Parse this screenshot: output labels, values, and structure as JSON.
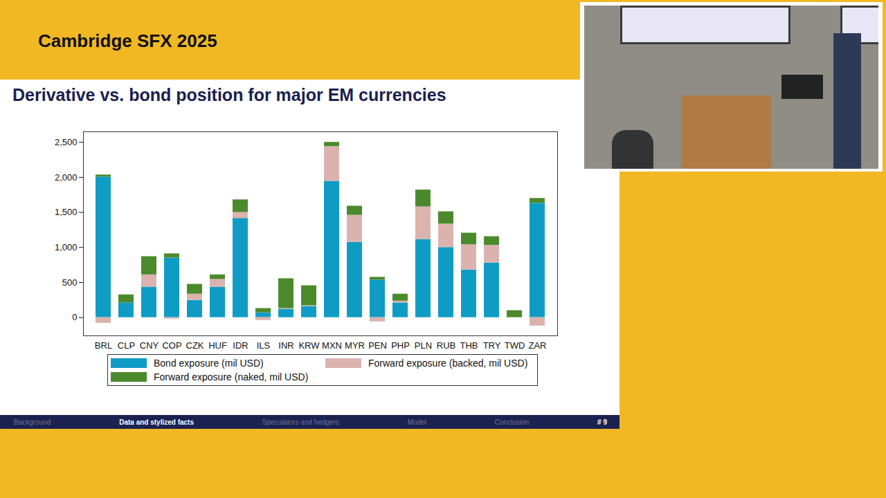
{
  "slide": {
    "header": "Cambridge SFX 2025",
    "footer": {
      "sections": [
        "Background",
        "Data and stylized facts",
        "Speculators and hedgers",
        "Model",
        "Conclusion"
      ],
      "active": "Data and stylized facts",
      "page": "# 9"
    }
  },
  "chart_data": {
    "type": "bar",
    "title": "Derivative vs. bond position for major EM currencies",
    "stacked": true,
    "grid": false,
    "legend": "bottom",
    "categories": [
      "BRL",
      "CLP",
      "CNY",
      "COP",
      "CZK",
      "HUF",
      "IDR",
      "ILS",
      "INR",
      "KRW",
      "MXN",
      "MYR",
      "PEN",
      "PHP",
      "PLN",
      "RUB",
      "THB",
      "TRY",
      "TWD",
      "ZAR"
    ],
    "series": [
      {
        "name": "Bond exposure (mil USD)",
        "color": "#0f9cc4",
        "values": [
          2005,
          210,
          435,
          850,
          245,
          435,
          1415,
          70,
          120,
          160,
          1945,
          1075,
          535,
          210,
          1115,
          1000,
          680,
          780,
          0,
          1630
        ]
      },
      {
        "name": "Forward exposure (backed, mil USD)",
        "color": "#dbb3ae",
        "values": [
          -80,
          0,
          175,
          -20,
          90,
          110,
          85,
          -40,
          10,
          10,
          495,
          385,
          -60,
          25,
          465,
          335,
          360,
          250,
          0,
          -120
        ]
      },
      {
        "name": "Forward exposure (naked, mil USD)",
        "color": "#4b8a2c",
        "values": [
          30,
          115,
          260,
          60,
          140,
          65,
          180,
          60,
          425,
          285,
          60,
          130,
          40,
          100,
          240,
          175,
          165,
          125,
          100,
          70
        ]
      }
    ],
    "ylim": [
      -260,
      2650
    ],
    "yticks": [
      0,
      500,
      {
        "value": 1000,
        "label": "1,000"
      },
      {
        "value": 1500,
        "label": "1,500"
      },
      {
        "value": 2000,
        "label": "2,000"
      },
      {
        "value": 2500,
        "label": "2,500"
      }
    ]
  }
}
